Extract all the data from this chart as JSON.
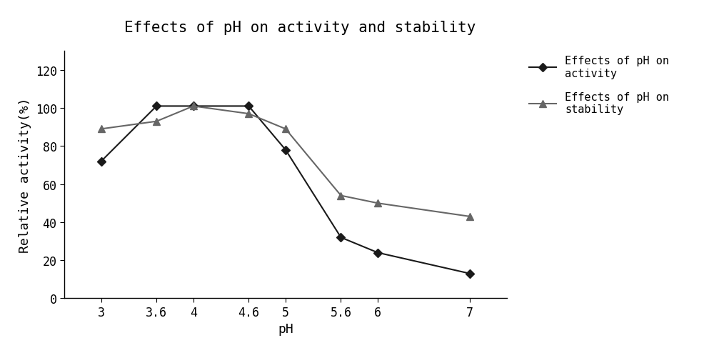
{
  "title": "Effects of pH on activity and stability",
  "xlabel": "pH",
  "ylabel": "Relative activity(%)",
  "x_values": [
    3,
    3.6,
    4,
    4.6,
    5,
    5.6,
    6,
    7
  ],
  "activity_y": [
    72,
    101,
    101,
    101,
    78,
    32,
    24,
    13
  ],
  "stability_y": [
    89,
    93,
    101,
    97,
    89,
    54,
    50,
    43
  ],
  "activity_color": "#1a1a1a",
  "stability_color": "#666666",
  "activity_label": "Effects of pH on\nactivity",
  "stability_label": "Effects of pH on\nstability",
  "ylim": [
    0,
    130
  ],
  "yticks": [
    0,
    20,
    40,
    60,
    80,
    100,
    120
  ],
  "background_color": "#ffffff",
  "title_fontsize": 15,
  "axis_fontsize": 13,
  "tick_fontsize": 12,
  "legend_fontsize": 11
}
